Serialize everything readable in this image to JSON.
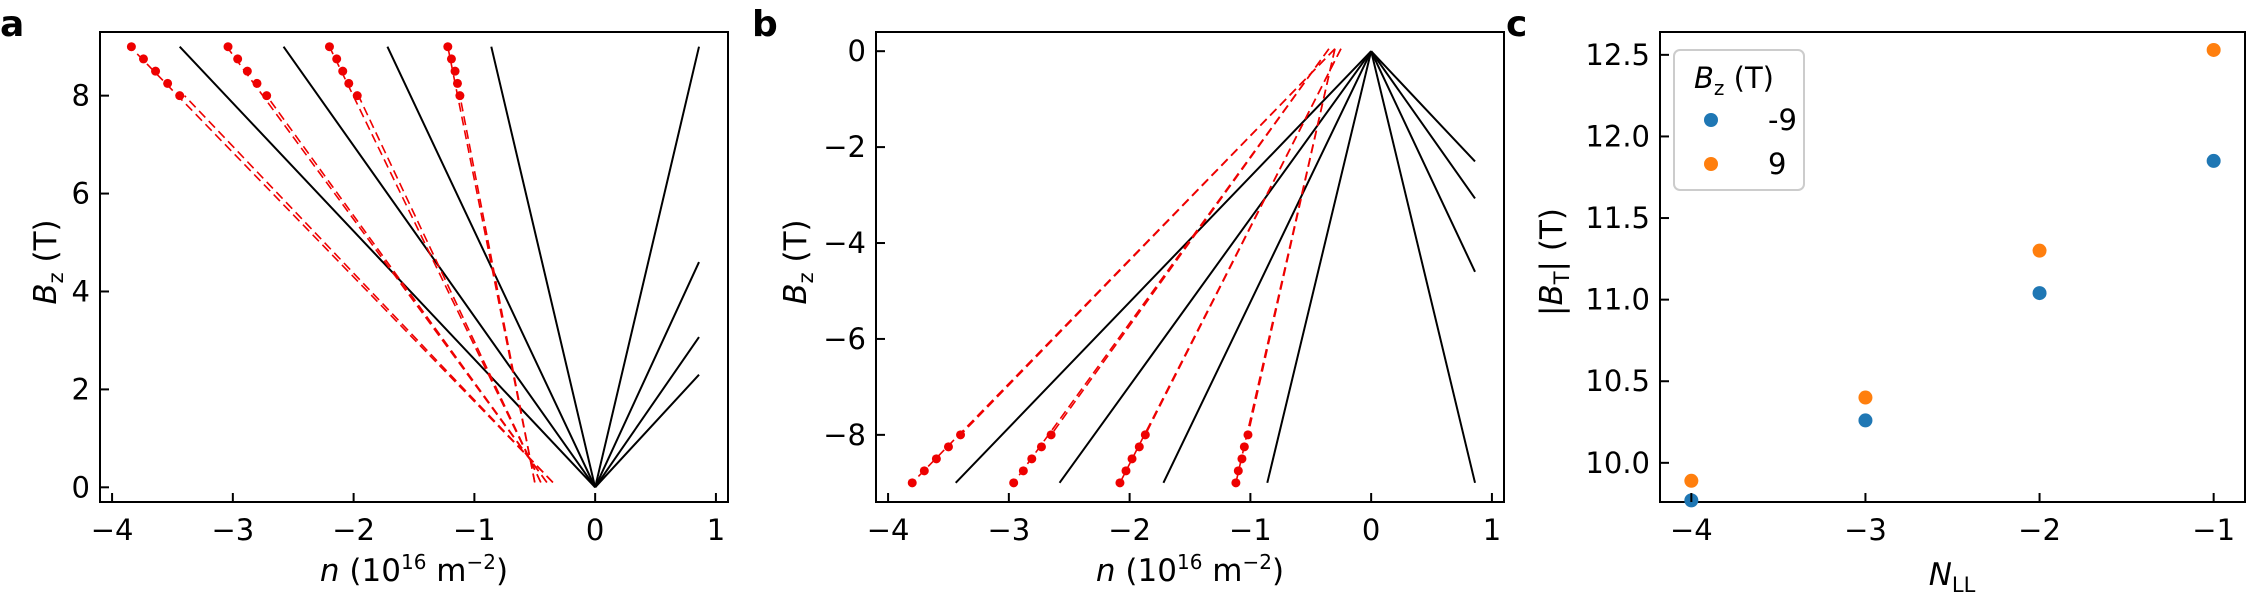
{
  "figure": {
    "panels": [
      {
        "letter": "a",
        "xlabel_main": "n",
        "xlabel_rest": " (10",
        "xlabel_exp": "16",
        "xlabel_unit": " m",
        "xlabel_unit_exp": "−2",
        "xlabel_close": ")",
        "ylabel_main": "B",
        "ylabel_sub": "z",
        "ylabel_unit": " (T)",
        "xticks": [
          "−4",
          "−3",
          "−2",
          "−1",
          "0",
          "1"
        ],
        "yticks": [
          "0",
          "2",
          "4",
          "6",
          "8"
        ]
      },
      {
        "letter": "b",
        "xlabel_main": "n",
        "xlabel_rest": " (10",
        "xlabel_exp": "16",
        "xlabel_unit": " m",
        "xlabel_unit_exp": "−2",
        "xlabel_close": ")",
        "ylabel_main": "B",
        "ylabel_sub": "z",
        "ylabel_unit": " (T)",
        "xticks": [
          "−4",
          "−3",
          "−2",
          "−1",
          "0",
          "1"
        ],
        "yticks": [
          "0",
          "−2",
          "−4",
          "−6",
          "−8"
        ]
      },
      {
        "letter": "c",
        "xlabel_main": "N",
        "xlabel_sub": "LL",
        "ylabel_bar": "|",
        "ylabel_main": "B",
        "ylabel_sub": "T",
        "ylabel_unit": "| (T)",
        "xticks": [
          "−4",
          "−3",
          "−2",
          "−1"
        ],
        "yticks": [
          "10.0",
          "10.5",
          "11.0",
          "11.5",
          "12.0",
          "12.5"
        ],
        "legend_title_main": "B",
        "legend_title_sub": "z",
        "legend_title_unit": " (T)"
      }
    ]
  },
  "colors": {
    "red": "#ee0000",
    "black": "#000000",
    "blue": "#1f77b4",
    "orange": "#ff7f0e"
  },
  "chart_data": [
    {
      "type": "line",
      "xlim": [
        -4.1,
        1.1
      ],
      "ylim": [
        -0.3,
        9.3
      ],
      "grid": false,
      "solid_lines_black": [
        {
          "from": [
            0,
            0
          ],
          "to": [
            -3.44,
            9.0
          ]
        },
        {
          "from": [
            0,
            0
          ],
          "to": [
            -2.58,
            9.0
          ]
        },
        {
          "from": [
            0,
            0
          ],
          "to": [
            -1.72,
            9.0
          ]
        },
        {
          "from": [
            0,
            0
          ],
          "to": [
            -0.86,
            9.0
          ]
        },
        {
          "from": [
            0,
            0
          ],
          "to": [
            0.86,
            9.0
          ]
        },
        {
          "from": [
            0,
            0
          ],
          "to": [
            0.86,
            4.6
          ]
        },
        {
          "from": [
            0,
            0
          ],
          "to": [
            0.86,
            3.07
          ]
        },
        {
          "from": [
            0,
            0
          ],
          "to": [
            0.86,
            2.3
          ]
        }
      ],
      "dashed_lines_red": [
        {
          "from": [
            -0.35,
            0.1
          ],
          "to": [
            -3.85,
            9.0
          ]
        },
        {
          "from": [
            -0.35,
            0.1
          ],
          "to": [
            -3.4,
            8.0
          ]
        },
        {
          "from": [
            -0.4,
            0.1
          ],
          "to": [
            -3.05,
            9.0
          ]
        },
        {
          "from": [
            -0.4,
            0.1
          ],
          "to": [
            -2.72,
            8.0
          ]
        },
        {
          "from": [
            -0.45,
            0.1
          ],
          "to": [
            -2.2,
            9.0
          ]
        },
        {
          "from": [
            -0.45,
            0.1
          ],
          "to": [
            -1.96,
            8.0
          ]
        },
        {
          "from": [
            -0.5,
            0.1
          ],
          "to": [
            -1.22,
            9.0
          ]
        },
        {
          "from": [
            -0.5,
            0.1
          ],
          "to": [
            -1.12,
            8.0
          ]
        }
      ],
      "red_points": [
        {
          "x": -3.84,
          "y": 9.0
        },
        {
          "x": -3.74,
          "y": 8.75
        },
        {
          "x": -3.64,
          "y": 8.5
        },
        {
          "x": -3.54,
          "y": 8.25
        },
        {
          "x": -3.44,
          "y": 8.0
        },
        {
          "x": -3.04,
          "y": 9.0
        },
        {
          "x": -2.96,
          "y": 8.75
        },
        {
          "x": -2.88,
          "y": 8.5
        },
        {
          "x": -2.8,
          "y": 8.25
        },
        {
          "x": -2.72,
          "y": 8.0
        },
        {
          "x": -2.2,
          "y": 9.0
        },
        {
          "x": -2.14,
          "y": 8.75
        },
        {
          "x": -2.09,
          "y": 8.5
        },
        {
          "x": -2.04,
          "y": 8.25
        },
        {
          "x": -1.97,
          "y": 8.0
        },
        {
          "x": -1.22,
          "y": 9.0
        },
        {
          "x": -1.19,
          "y": 8.75
        },
        {
          "x": -1.16,
          "y": 8.5
        },
        {
          "x": -1.14,
          "y": 8.25
        },
        {
          "x": -1.12,
          "y": 8.0
        }
      ]
    },
    {
      "type": "line",
      "xlim": [
        -4.1,
        1.1
      ],
      "ylim": [
        -9.4,
        0.4
      ],
      "grid": false,
      "solid_lines_black": [
        {
          "from": [
            0,
            0
          ],
          "to": [
            -3.44,
            -9.0
          ]
        },
        {
          "from": [
            0,
            0
          ],
          "to": [
            -2.58,
            -9.0
          ]
        },
        {
          "from": [
            0,
            0
          ],
          "to": [
            -1.72,
            -9.0
          ]
        },
        {
          "from": [
            0,
            0
          ],
          "to": [
            -0.86,
            -9.0
          ]
        },
        {
          "from": [
            0,
            0
          ],
          "to": [
            0.86,
            -9.0
          ]
        },
        {
          "from": [
            0,
            0
          ],
          "to": [
            0.86,
            -4.6
          ]
        },
        {
          "from": [
            0,
            0
          ],
          "to": [
            0.86,
            -3.07
          ]
        },
        {
          "from": [
            0,
            0
          ],
          "to": [
            0.86,
            -2.3
          ]
        }
      ],
      "dashed_lines_red": [
        {
          "from": [
            -0.3,
            0.05
          ],
          "to": [
            -3.8,
            -9.0
          ]
        },
        {
          "from": [
            -0.3,
            0.05
          ],
          "to": [
            -3.4,
            -8.0
          ]
        },
        {
          "from": [
            -0.35,
            0.05
          ],
          "to": [
            -2.96,
            -9.0
          ]
        },
        {
          "from": [
            -0.35,
            0.05
          ],
          "to": [
            -2.65,
            -8.0
          ]
        },
        {
          "from": [
            -0.25,
            0.05
          ],
          "to": [
            -2.08,
            -9.0
          ]
        },
        {
          "from": [
            -0.25,
            0.05
          ],
          "to": [
            -1.87,
            -8.0
          ]
        },
        {
          "from": [
            -0.3,
            0.05
          ],
          "to": [
            -1.12,
            -9.0
          ]
        },
        {
          "from": [
            -0.3,
            0.05
          ],
          "to": [
            -1.02,
            -8.0
          ]
        }
      ],
      "red_points": [
        {
          "x": -3.8,
          "y": -9.0
        },
        {
          "x": -3.7,
          "y": -8.75
        },
        {
          "x": -3.6,
          "y": -8.5
        },
        {
          "x": -3.5,
          "y": -8.25
        },
        {
          "x": -3.4,
          "y": -8.0
        },
        {
          "x": -2.96,
          "y": -9.0
        },
        {
          "x": -2.88,
          "y": -8.75
        },
        {
          "x": -2.81,
          "y": -8.5
        },
        {
          "x": -2.73,
          "y": -8.25
        },
        {
          "x": -2.65,
          "y": -8.0
        },
        {
          "x": -2.08,
          "y": -9.0
        },
        {
          "x": -2.03,
          "y": -8.75
        },
        {
          "x": -1.98,
          "y": -8.5
        },
        {
          "x": -1.92,
          "y": -8.25
        },
        {
          "x": -1.87,
          "y": -8.0
        },
        {
          "x": -1.12,
          "y": -9.0
        },
        {
          "x": -1.1,
          "y": -8.75
        },
        {
          "x": -1.07,
          "y": -8.5
        },
        {
          "x": -1.05,
          "y": -8.25
        },
        {
          "x": -1.02,
          "y": -8.0
        }
      ]
    },
    {
      "type": "scatter",
      "xlim": [
        -4.18,
        -0.82
      ],
      "ylim": [
        9.76,
        12.64
      ],
      "grid": false,
      "legend_position": "upper-left",
      "series": [
        {
          "name": "-9",
          "color": "#1f77b4",
          "x": [
            -4,
            -3,
            -2,
            -1
          ],
          "y": [
            9.77,
            10.26,
            11.04,
            11.85
          ]
        },
        {
          "name": "9",
          "color": "#ff7f0e",
          "x": [
            -4,
            -3,
            -2,
            -1
          ],
          "y": [
            9.89,
            10.4,
            11.3,
            12.53
          ]
        }
      ]
    }
  ]
}
